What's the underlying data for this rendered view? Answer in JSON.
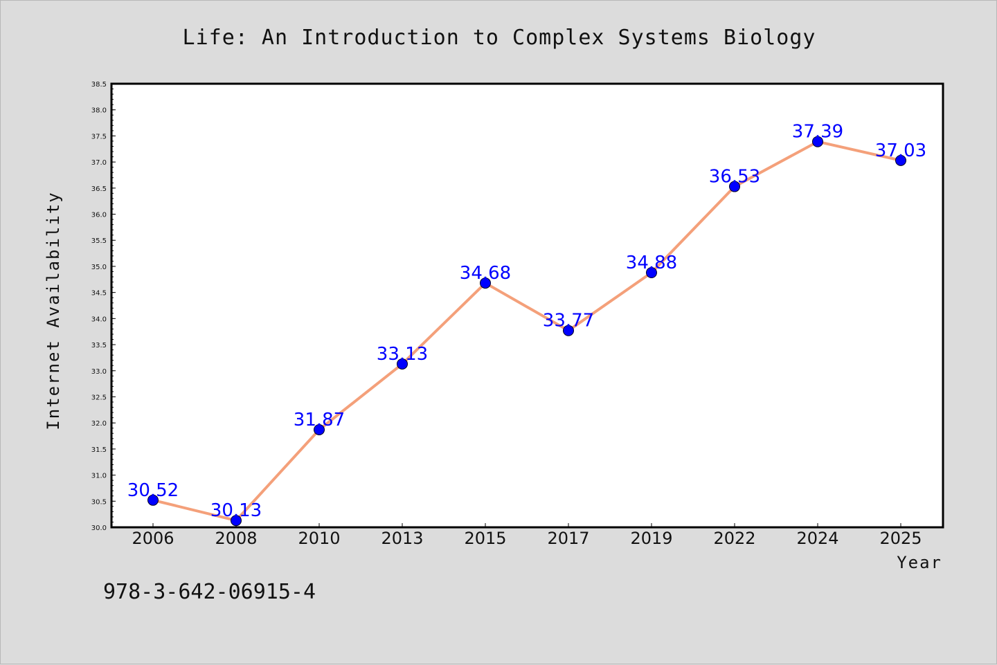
{
  "chart_data": {
    "type": "line",
    "title": "Life: An Introduction to Complex Systems Biology",
    "xlabel": "Year",
    "ylabel": "Internet Availability",
    "categories": [
      "2006",
      "2008",
      "2010",
      "2013",
      "2015",
      "2017",
      "2019",
      "2022",
      "2024",
      "2025"
    ],
    "series": [
      {
        "values": [
          30.52,
          30.13,
          31.87,
          33.13,
          34.68,
          33.77,
          34.88,
          36.53,
          37.39,
          37.03
        ],
        "value_labels": [
          "30.52",
          "30.13",
          "31.87",
          "33.13",
          "34.68",
          "33.77",
          "34.88",
          "36.53",
          "37.39",
          "37.03"
        ],
        "line_color": "#f4a07a",
        "marker_color": "#0000ff"
      }
    ],
    "ylim": [
      30.0,
      38.5
    ],
    "yticks": [
      30.0,
      30.5,
      31.0,
      31.5,
      32.0,
      32.5,
      33.0,
      33.5,
      34.0,
      34.5,
      35.0,
      35.5,
      36.0,
      36.5,
      37.0,
      37.5,
      38.0,
      38.5
    ],
    "ytick_labels": [
      "30.0",
      "30.5",
      "31.0",
      "31.5",
      "32.0",
      "32.5",
      "33.0",
      "33.5",
      "34.0",
      "34.5",
      "35.0",
      "35.5",
      "36.0",
      "36.5",
      "37.0",
      "37.5",
      "38.0",
      "38.5"
    ],
    "grid": false,
    "legend": "none",
    "background": "#dcdcdc",
    "plot_background": "#ffffff"
  },
  "footer": {
    "isbn": "978-3-642-06915-4"
  }
}
